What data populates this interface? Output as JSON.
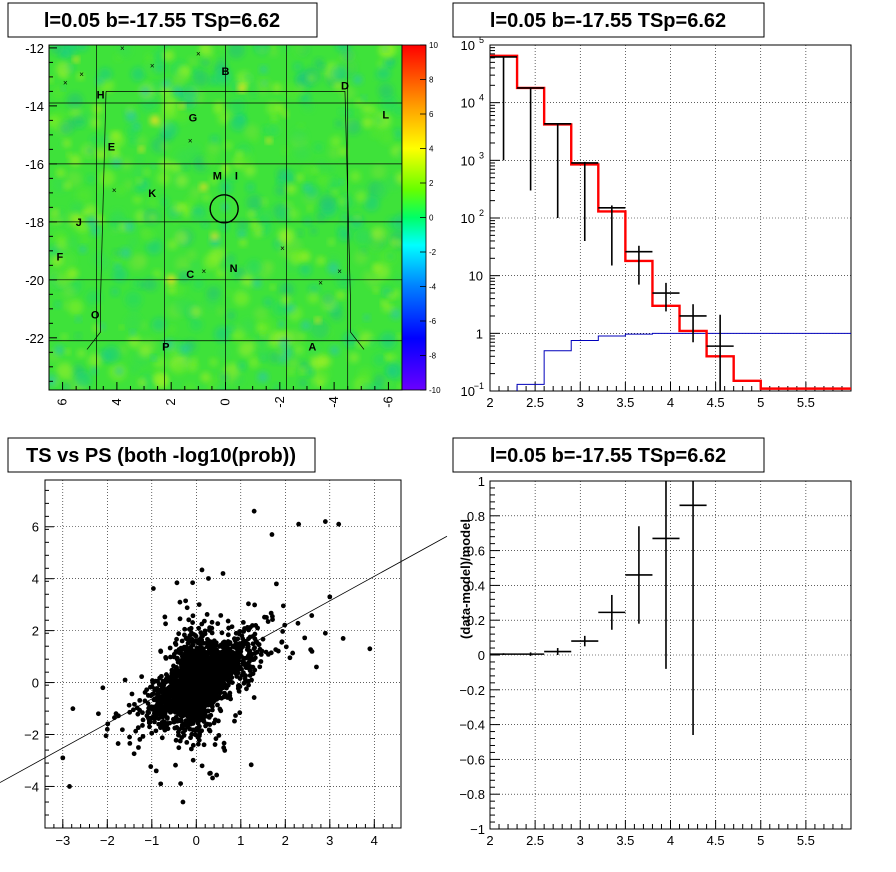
{
  "chart_data": [
    {
      "type": "heatmap",
      "title": "l=0.05 b=-17.55 TSp=6.62",
      "xlim": [
        6.5,
        -6.5
      ],
      "ylim": [
        -23.8,
        -11.9
      ],
      "xticks": [
        6,
        4,
        2,
        0,
        -2,
        -4,
        -6
      ],
      "xtick_labels": [
        "6",
        "4",
        "2",
        "0",
        "-2",
        "-4",
        "-6"
      ],
      "yticks": [
        -12,
        -14,
        -16,
        -18,
        -20,
        -22
      ],
      "ytick_labels": [
        "-12",
        "-14",
        "-16",
        "-18",
        "-20",
        "-22"
      ],
      "colorbar": {
        "range": [
          -10,
          10
        ],
        "ticks": [
          10,
          8,
          6,
          4,
          2,
          0,
          -2,
          -4,
          -6,
          -8,
          -10
        ],
        "tick_labels": [
          "10",
          "8",
          "6",
          "4",
          "2",
          "0",
          "-2",
          "-4",
          "-6",
          "-8",
          "-10"
        ]
      },
      "circle": {
        "l": 0.05,
        "b": -17.55
      },
      "source_labels": [
        {
          "text": "B",
          "l": 0.0,
          "b": -12.8
        },
        {
          "text": "D",
          "l": -4.4,
          "b": -13.3
        },
        {
          "text": "H",
          "l": 4.6,
          "b": -13.6
        },
        {
          "text": "L",
          "l": -5.9,
          "b": -14.3
        },
        {
          "text": "G",
          "l": 1.2,
          "b": -14.4
        },
        {
          "text": "E",
          "l": 4.2,
          "b": -15.4
        },
        {
          "text": "M",
          "l": 0.3,
          "b": -16.4
        },
        {
          "text": "I",
          "l": -0.4,
          "b": -16.4
        },
        {
          "text": "K",
          "l": 2.7,
          "b": -17.0
        },
        {
          "text": "J",
          "l": 5.4,
          "b": -18.0
        },
        {
          "text": "F",
          "l": 6.1,
          "b": -19.2
        },
        {
          "text": "C",
          "l": 1.3,
          "b": -19.8
        },
        {
          "text": "N",
          "l": -0.3,
          "b": -19.6
        },
        {
          "text": "O",
          "l": 4.8,
          "b": -21.2
        },
        {
          "text": "P",
          "l": 2.2,
          "b": -22.3
        },
        {
          "text": "A",
          "l": -3.2,
          "b": -22.3
        }
      ]
    },
    {
      "type": "line",
      "title": "l=0.05 b=-17.55 TSp=6.62",
      "xlim": [
        2,
        6
      ],
      "ylim": [
        0.1,
        100000
      ],
      "ylog": true,
      "xticks": [
        2,
        2.5,
        3,
        3.5,
        4,
        4.5,
        5,
        5.5
      ],
      "xtick_labels": [
        "2",
        "2.5",
        "3",
        "3.5",
        "4",
        "4.5",
        "5",
        "5.5"
      ],
      "yticks": [
        {
          "base": "10",
          "exp": "−1"
        },
        {
          "base": "1",
          "exp": ""
        },
        {
          "base": "10",
          "exp": ""
        },
        {
          "base": "10",
          "exp": "2"
        },
        {
          "base": "10",
          "exp": "3"
        },
        {
          "base": "10",
          "exp": "4"
        },
        {
          "base": "10",
          "exp": "5"
        }
      ],
      "ytick_values": [
        0.1,
        1,
        10,
        100,
        1000,
        10000,
        100000
      ],
      "grid": true,
      "series": [
        {
          "color": "#ff0000",
          "edges": [
            2.0,
            2.3,
            2.6,
            2.9,
            3.2,
            3.5,
            3.8,
            4.1,
            4.4,
            4.7,
            5.0,
            5.3,
            6.0
          ],
          "values": [
            65000,
            18000,
            4200,
            850,
            130,
            18,
            3.0,
            1.1,
            0.4,
            0.15,
            0.11,
            0.11
          ]
        },
        {
          "color": "#000000",
          "x": [
            2.15,
            2.45,
            2.75,
            3.05,
            3.35,
            3.65,
            3.95,
            4.25,
            4.55
          ],
          "y": [
            62000,
            18000,
            4300,
            900,
            150,
            26,
            5,
            2,
            0.6
          ],
          "yerr_low": [
            61000,
            17700,
            4200,
            860,
            135,
            19,
            2.6,
            1.3,
            0.6
          ],
          "yerr_high": [
            63000,
            18300,
            4400,
            940,
            165,
            33,
            7.5,
            3.2,
            2.1
          ],
          "xerr": 0.15
        },
        {
          "color": "#0000bb",
          "edges": [
            2.0,
            2.3,
            2.6,
            2.9,
            3.2,
            3.5,
            3.8,
            4.1,
            4.4,
            4.7,
            6.0
          ],
          "values": [
            0.09,
            0.13,
            0.5,
            0.75,
            0.9,
            0.97,
            1.0,
            1.0,
            1.0,
            1.0
          ]
        }
      ]
    },
    {
      "type": "scatter",
      "title": "TS vs PS (both -log10(prob))",
      "xlim": [
        -3.4,
        4.6
      ],
      "ylim": [
        -5.6,
        7.8
      ],
      "xticks": [
        -3,
        -2,
        -1,
        0,
        1,
        2,
        3,
        4
      ],
      "xtick_labels": [
        "−3",
        "−2",
        "−1",
        "0",
        "1",
        "2",
        "3",
        "4"
      ],
      "yticks": [
        -4,
        -2,
        0,
        2,
        4,
        6
      ],
      "ytick_labels": [
        "−4",
        "−2",
        "0",
        "2",
        "4",
        "6"
      ],
      "grid": true,
      "fit_line": {
        "slope": 1.0,
        "intercept": 0.0
      },
      "cloud": {
        "n": 2600,
        "seed": 7
      },
      "outliers": [
        [
          1.3,
          6.6
        ],
        [
          2.3,
          6.1
        ],
        [
          2.9,
          6.2
        ],
        [
          3.2,
          6.1
        ],
        [
          1.7,
          5.7
        ],
        [
          0.6,
          4.2
        ],
        [
          1.8,
          3.8
        ],
        [
          3.0,
          3.3
        ],
        [
          3.9,
          1.3
        ],
        [
          3.3,
          1.7
        ],
        [
          2.9,
          1.9
        ],
        [
          2.6,
          1.2
        ],
        [
          2.7,
          0.6
        ],
        [
          -2.1,
          -0.2
        ],
        [
          -1.6,
          0.1
        ],
        [
          -2.2,
          -1.2
        ],
        [
          -2.0,
          -1.8
        ],
        [
          -3.0,
          -2.9
        ],
        [
          -1.5,
          -2.1
        ],
        [
          -0.8,
          -3.9
        ],
        [
          -0.3,
          -4.6
        ],
        [
          -0.9,
          -3.4
        ],
        [
          -1.3,
          -2.5
        ],
        [
          0.3,
          -3.5
        ]
      ]
    },
    {
      "type": "scatter",
      "title": "l=0.05 b=-17.55 TSp=6.62",
      "ylabel": "(data-model)/model",
      "xlim": [
        2,
        6
      ],
      "ylim": [
        -1,
        1
      ],
      "xticks": [
        2,
        2.5,
        3,
        3.5,
        4,
        4.5,
        5,
        5.5
      ],
      "xtick_labels": [
        "2",
        "2.5",
        "3",
        "3.5",
        "4",
        "4.5",
        "5",
        "5.5"
      ],
      "yticks": [
        -1,
        -0.8,
        -0.6,
        -0.4,
        -0.2,
        0,
        0.2,
        0.4,
        0.6,
        0.8,
        1
      ],
      "ytick_labels": [
        "−1",
        "−0.8",
        "−0.6",
        "−0.4",
        "−0.2",
        "0",
        "0.2",
        "0.4",
        "0.6",
        "0.8",
        "1"
      ],
      "grid": true,
      "series": [
        {
          "color": "#000000",
          "x": [
            2.15,
            2.45,
            2.75,
            3.05,
            3.35,
            3.65,
            3.95,
            4.25
          ],
          "y": [
            0.005,
            0.005,
            0.02,
            0.08,
            0.245,
            0.46,
            0.67,
            0.86
          ],
          "yerr_low": [
            0.005,
            0.01,
            0.02,
            0.03,
            0.1,
            0.28,
            0.75,
            1.32
          ],
          "yerr_high": [
            0.005,
            0.01,
            0.02,
            0.03,
            0.1,
            0.28,
            0.5,
            0.5
          ],
          "xerr": 0.15
        }
      ]
    }
  ]
}
